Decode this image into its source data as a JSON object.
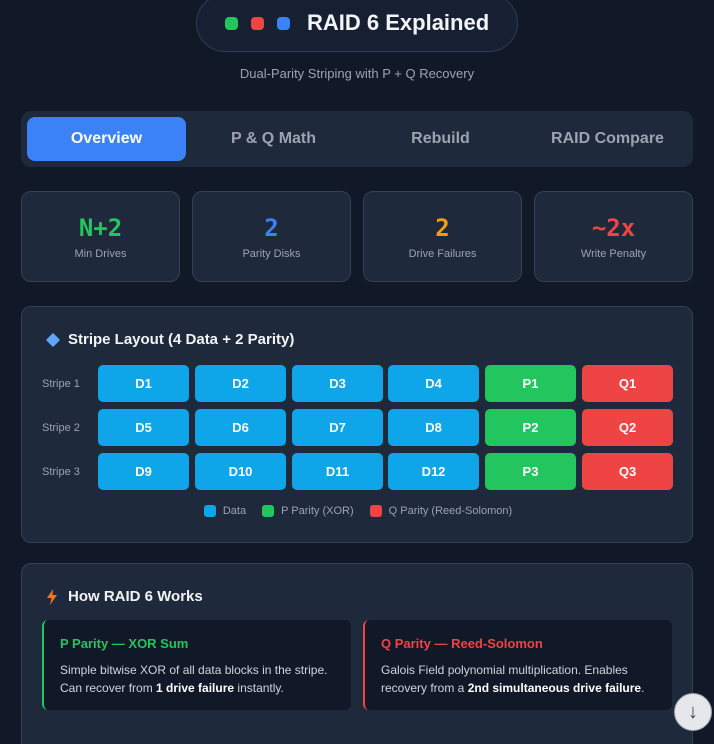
{
  "header": {
    "title": "RAID 6 Explained",
    "dots": [
      "#22c55e",
      "#ef4444",
      "#3b82f6"
    ],
    "subtitle": "Dual-Parity Striping with P + Q Recovery"
  },
  "tabs": [
    {
      "label": "Overview",
      "active": true
    },
    {
      "label": "P & Q Math",
      "active": false
    },
    {
      "label": "Rebuild",
      "active": false
    },
    {
      "label": "RAID Compare",
      "active": false
    }
  ],
  "stats": [
    {
      "value": "N+2",
      "label": "Min Drives",
      "color": "#22c55e"
    },
    {
      "value": "2",
      "label": "Parity Disks",
      "color": "#3b82f6"
    },
    {
      "value": "2",
      "label": "Drive Failures",
      "color": "#f59e0b"
    },
    {
      "value": "~2x",
      "label": "Write Penalty",
      "color": "#ef4444"
    }
  ],
  "stripe_layout": {
    "title": "Stripe Layout (4 Data + 2 Parity)",
    "rows": [
      {
        "label": "Stripe 1",
        "cells": [
          "D1",
          "D2",
          "D3",
          "D4",
          "P1",
          "Q1"
        ]
      },
      {
        "label": "Stripe 2",
        "cells": [
          "D5",
          "D6",
          "D7",
          "D8",
          "P2",
          "Q2"
        ]
      },
      {
        "label": "Stripe 3",
        "cells": [
          "D9",
          "D10",
          "D11",
          "D12",
          "P3",
          "Q3"
        ]
      }
    ],
    "legend": [
      {
        "label": "Data",
        "color": "#0ea5e9"
      },
      {
        "label": "P Parity (XOR)",
        "color": "#22c55e"
      },
      {
        "label": "Q Parity (Reed-Solomon)",
        "color": "#ef4444"
      }
    ]
  },
  "how_it_works": {
    "title": "How RAID 6 Works",
    "p_card": {
      "title": "P Parity — XOR Sum",
      "text_1": "Simple bitwise XOR of all data blocks in the stripe. Can recover from ",
      "bold": "1 drive failure",
      "text_2": " instantly."
    },
    "q_card": {
      "title": "Q Parity — Reed-Solomon",
      "text_1": "Galois Field polynomial multiplication. Enables recovery from a ",
      "bold": "2nd simultaneous drive failure",
      "text_2": "."
    }
  }
}
